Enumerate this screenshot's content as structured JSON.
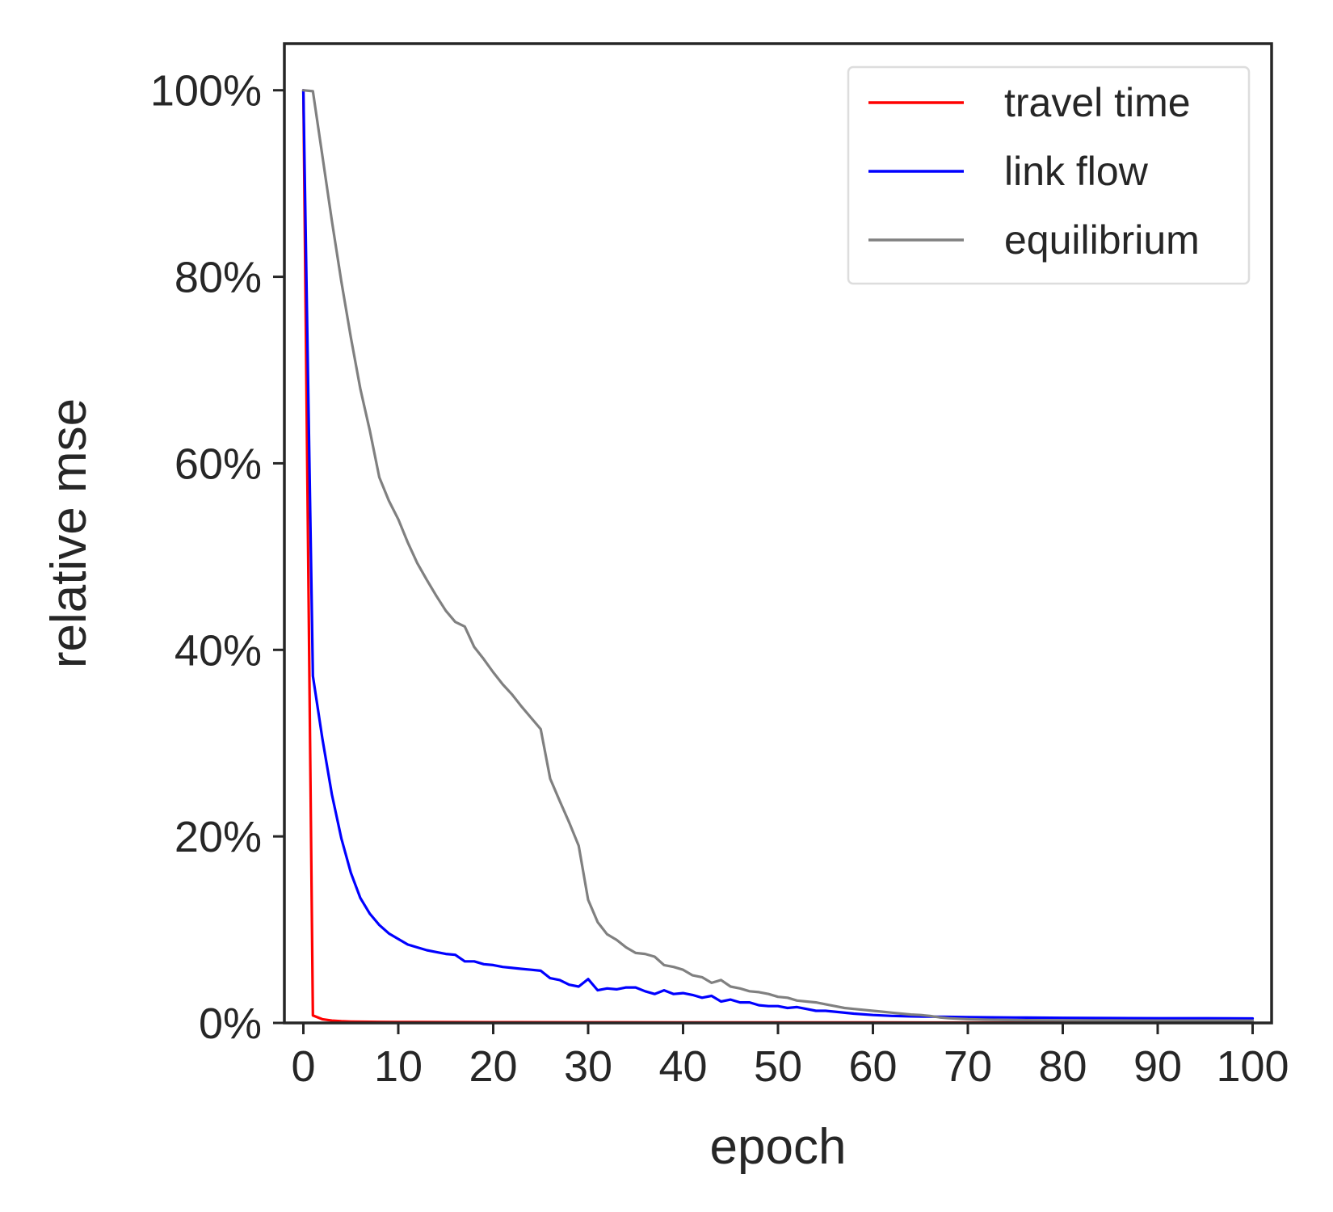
{
  "chart_data": {
    "type": "line",
    "xlabel": "epoch",
    "ylabel": "relative mse",
    "xlim": [
      -2,
      102
    ],
    "ylim": [
      0,
      105
    ],
    "x_ticks": [
      0,
      10,
      20,
      30,
      40,
      50,
      60,
      70,
      80,
      90,
      100
    ],
    "x_tick_labels": [
      "0",
      "10",
      "20",
      "30",
      "40",
      "50",
      "60",
      "70",
      "80",
      "90",
      "100"
    ],
    "y_ticks": [
      0,
      20,
      40,
      60,
      80,
      100
    ],
    "y_tick_labels": [
      "0%",
      "20%",
      "40%",
      "60%",
      "80%",
      "100%"
    ],
    "grid": false,
    "legend_position": "top-right",
    "series": [
      {
        "name": "travel time",
        "color": "#ff0000",
        "points": [
          [
            0,
            100
          ],
          [
            1,
            0.8
          ],
          [
            2,
            0.4
          ],
          [
            3,
            0.25
          ],
          [
            4,
            0.18
          ],
          [
            5,
            0.15
          ],
          [
            6,
            0.13
          ],
          [
            8,
            0.11
          ],
          [
            10,
            0.1
          ],
          [
            20,
            0.08
          ],
          [
            30,
            0.07
          ],
          [
            40,
            0.06
          ],
          [
            50,
            0.05
          ],
          [
            60,
            0.05
          ],
          [
            70,
            0.04
          ],
          [
            80,
            0.04
          ],
          [
            90,
            0.04
          ],
          [
            100,
            0.04
          ]
        ]
      },
      {
        "name": "link flow",
        "color": "#0000ff",
        "points": [
          [
            0,
            100
          ],
          [
            1,
            37.2
          ],
          [
            2,
            30.5
          ],
          [
            3,
            24.5
          ],
          [
            4,
            19.8
          ],
          [
            5,
            16.1
          ],
          [
            6,
            13.4
          ],
          [
            7,
            11.7
          ],
          [
            8,
            10.5
          ],
          [
            9,
            9.6
          ],
          [
            10,
            9.0
          ],
          [
            11,
            8.4
          ],
          [
            12,
            8.1
          ],
          [
            13,
            7.8
          ],
          [
            14,
            7.6
          ],
          [
            15,
            7.4
          ],
          [
            16,
            7.3
          ],
          [
            17,
            6.6
          ],
          [
            18,
            6.6
          ],
          [
            19,
            6.3
          ],
          [
            20,
            6.2
          ],
          [
            21,
            6.0
          ],
          [
            22,
            5.9
          ],
          [
            23,
            5.8
          ],
          [
            24,
            5.7
          ],
          [
            25,
            5.6
          ],
          [
            26,
            4.8
          ],
          [
            27,
            4.6
          ],
          [
            28,
            4.1
          ],
          [
            29,
            3.9
          ],
          [
            30,
            4.7
          ],
          [
            31,
            3.5
          ],
          [
            32,
            3.7
          ],
          [
            33,
            3.6
          ],
          [
            34,
            3.8
          ],
          [
            35,
            3.8
          ],
          [
            36,
            3.4
          ],
          [
            37,
            3.1
          ],
          [
            38,
            3.5
          ],
          [
            39,
            3.1
          ],
          [
            40,
            3.2
          ],
          [
            41,
            3.0
          ],
          [
            42,
            2.7
          ],
          [
            43,
            2.9
          ],
          [
            44,
            2.3
          ],
          [
            45,
            2.5
          ],
          [
            46,
            2.2
          ],
          [
            47,
            2.2
          ],
          [
            48,
            1.9
          ],
          [
            49,
            1.8
          ],
          [
            50,
            1.8
          ],
          [
            51,
            1.6
          ],
          [
            52,
            1.7
          ],
          [
            53,
            1.5
          ],
          [
            54,
            1.3
          ],
          [
            55,
            1.3
          ],
          [
            56,
            1.2
          ],
          [
            58,
            1.0
          ],
          [
            60,
            0.85
          ],
          [
            62,
            0.75
          ],
          [
            64,
            0.7
          ],
          [
            66,
            0.68
          ],
          [
            68,
            0.65
          ],
          [
            70,
            0.62
          ],
          [
            75,
            0.58
          ],
          [
            80,
            0.55
          ],
          [
            85,
            0.52
          ],
          [
            90,
            0.5
          ],
          [
            95,
            0.5
          ],
          [
            100,
            0.48
          ]
        ]
      },
      {
        "name": "equilibrium",
        "color": "#808080",
        "points": [
          [
            0,
            100
          ],
          [
            1,
            99.9
          ],
          [
            2,
            93
          ],
          [
            3,
            86
          ],
          [
            4,
            79.5
          ],
          [
            5,
            73.5
          ],
          [
            6,
            68
          ],
          [
            7,
            63.5
          ],
          [
            8,
            58.5
          ],
          [
            9,
            56
          ],
          [
            10,
            54
          ],
          [
            11,
            51.5
          ],
          [
            12,
            49.3
          ],
          [
            13,
            47.5
          ],
          [
            14,
            45.8
          ],
          [
            15,
            44.2
          ],
          [
            16,
            43
          ],
          [
            17,
            42.5
          ],
          [
            18,
            40.3
          ],
          [
            19,
            39
          ],
          [
            20,
            37.6
          ],
          [
            21,
            36.3
          ],
          [
            22,
            35.2
          ],
          [
            23,
            33.9
          ],
          [
            24,
            32.7
          ],
          [
            25,
            31.5
          ],
          [
            26,
            26.2
          ],
          [
            27,
            23.8
          ],
          [
            28,
            21.5
          ],
          [
            29,
            19
          ],
          [
            30,
            13.2
          ],
          [
            31,
            10.8
          ],
          [
            32,
            9.5
          ],
          [
            33,
            8.9
          ],
          [
            34,
            8.1
          ],
          [
            35,
            7.5
          ],
          [
            36,
            7.4
          ],
          [
            37,
            7.1
          ],
          [
            38,
            6.2
          ],
          [
            39,
            6.0
          ],
          [
            40,
            5.7
          ],
          [
            41,
            5.1
          ],
          [
            42,
            4.9
          ],
          [
            43,
            4.3
          ],
          [
            44,
            4.6
          ],
          [
            45,
            3.9
          ],
          [
            46,
            3.7
          ],
          [
            47,
            3.4
          ],
          [
            48,
            3.3
          ],
          [
            49,
            3.1
          ],
          [
            50,
            2.8
          ],
          [
            51,
            2.7
          ],
          [
            52,
            2.4
          ],
          [
            53,
            2.3
          ],
          [
            54,
            2.2
          ],
          [
            55,
            2.0
          ],
          [
            56,
            1.8
          ],
          [
            57,
            1.6
          ],
          [
            58,
            1.5
          ],
          [
            59,
            1.4
          ],
          [
            60,
            1.3
          ],
          [
            61,
            1.2
          ],
          [
            62,
            1.1
          ],
          [
            63,
            1.0
          ],
          [
            64,
            0.9
          ],
          [
            65,
            0.85
          ],
          [
            66,
            0.75
          ],
          [
            67,
            0.6
          ],
          [
            68,
            0.5
          ],
          [
            69,
            0.45
          ],
          [
            70,
            0.4
          ],
          [
            72,
            0.35
          ],
          [
            75,
            0.3
          ],
          [
            80,
            0.28
          ],
          [
            85,
            0.27
          ],
          [
            90,
            0.25
          ],
          [
            95,
            0.25
          ],
          [
            100,
            0.24
          ]
        ]
      }
    ]
  }
}
